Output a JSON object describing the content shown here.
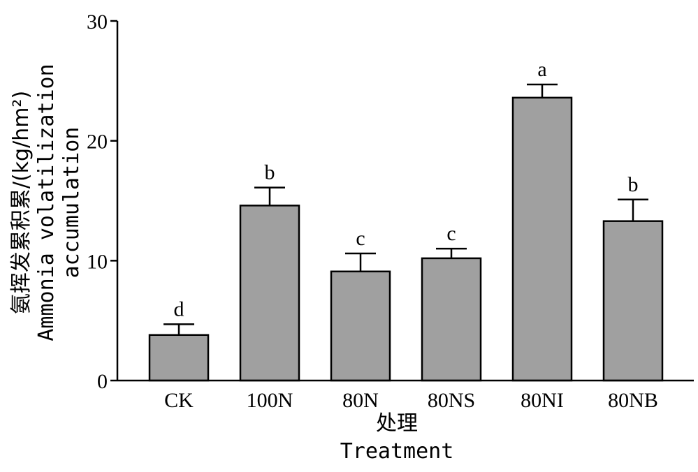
{
  "chart_data": {
    "type": "bar",
    "categories": [
      "CK",
      "100N",
      "80N",
      "80NS",
      "80NI",
      "80NB"
    ],
    "values": [
      3.8,
      14.6,
      9.1,
      10.2,
      23.6,
      13.3
    ],
    "error_upper": [
      4.7,
      16.1,
      10.6,
      11.0,
      24.7,
      15.1
    ],
    "significance": [
      "d",
      "b",
      "c",
      "c",
      "a",
      "b"
    ],
    "ylim": [
      0,
      30
    ],
    "yticks": [
      "0",
      "10",
      "20",
      "30"
    ],
    "xlabel_cn": "处理",
    "xlabel_en": "Treatment",
    "ylabel_cn": "氨挥发累积累/(kg/hm²)",
    "ylabel_en_1": "Ammonia volatilization",
    "ylabel_en_2": "accumulation",
    "bar_color": "#a0a0a0",
    "grid": false
  }
}
